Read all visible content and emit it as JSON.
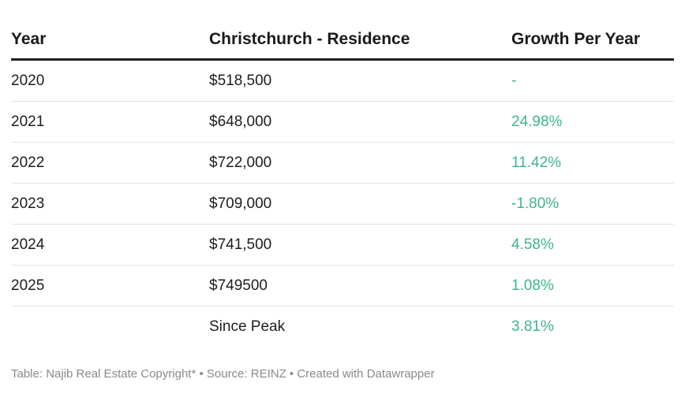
{
  "chart_data": {
    "type": "table",
    "columns": [
      "Year",
      "Christchurch - Residence",
      "Growth Per Year"
    ],
    "rows": [
      {
        "year": "2020",
        "price": "$518,500",
        "growth": "-"
      },
      {
        "year": "2021",
        "price": "$648,000",
        "growth": "24.98%"
      },
      {
        "year": "2022",
        "price": "$722,000",
        "growth": "11.42%"
      },
      {
        "year": "2023",
        "price": "$709,000",
        "growth": "-1.80%"
      },
      {
        "year": "2024",
        "price": "$741,500",
        "growth": "4.58%"
      },
      {
        "year": "2025",
        "price": "$749500",
        "growth": "1.08%"
      },
      {
        "year": "",
        "price": "Since Peak",
        "growth": "3.81%"
      }
    ],
    "growth_color": "#3fb58a"
  },
  "footer": {
    "text": "Table: Najib Real Estate Copyright* • Source: REINZ • Created with Datawrapper"
  }
}
